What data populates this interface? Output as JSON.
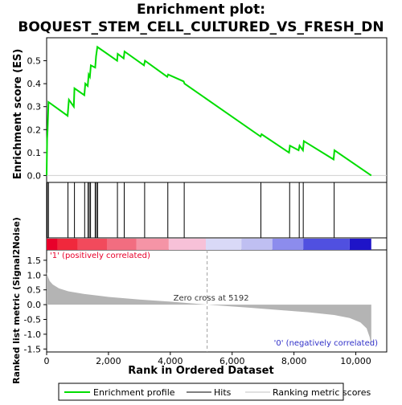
{
  "chart_data": {
    "type": "line",
    "title_lines": [
      "Enrichment plot:",
      "BOQUEST_STEM_CELL_CULTURED_VS_FRESH_DN"
    ],
    "xlabel": "Rank in Ordered Dataset",
    "es_panel": {
      "ylabel": "Enrichment score (ES)",
      "xlim": [
        0,
        11000
      ],
      "ylim": [
        -0.03,
        0.6
      ],
      "yticks": [
        0.0,
        0.1,
        0.2,
        0.3,
        0.4,
        0.5
      ],
      "ytick_labels": [
        "0.0",
        "0.1",
        "0.2",
        "0.3",
        "0.4",
        "0.5"
      ],
      "series_name": "Enrichment profile",
      "points": [
        [
          0,
          0
        ],
        [
          15,
          0.16
        ],
        [
          30,
          0.2
        ],
        [
          60,
          0.32
        ],
        [
          680,
          0.26
        ],
        [
          720,
          0.33
        ],
        [
          880,
          0.3
        ],
        [
          900,
          0.38
        ],
        [
          1220,
          0.35
        ],
        [
          1250,
          0.4
        ],
        [
          1330,
          0.39
        ],
        [
          1360,
          0.44
        ],
        [
          1400,
          0.43
        ],
        [
          1430,
          0.48
        ],
        [
          1570,
          0.47
        ],
        [
          1600,
          0.52
        ],
        [
          1640,
          0.56
        ],
        [
          2280,
          0.5
        ],
        [
          2300,
          0.53
        ],
        [
          2490,
          0.51
        ],
        [
          2520,
          0.54
        ],
        [
          3150,
          0.48
        ],
        [
          3180,
          0.5
        ],
        [
          3900,
          0.43
        ],
        [
          3930,
          0.44
        ],
        [
          4430,
          0.41
        ],
        [
          4460,
          0.4
        ],
        [
          6920,
          0.17
        ],
        [
          6950,
          0.18
        ],
        [
          7840,
          0.1
        ],
        [
          7870,
          0.13
        ],
        [
          8150,
          0.11
        ],
        [
          8180,
          0.13
        ],
        [
          8290,
          0.11
        ],
        [
          8320,
          0.15
        ],
        [
          9280,
          0.07
        ],
        [
          9310,
          0.11
        ],
        [
          10500,
          0
        ]
      ]
    },
    "hits": [
      20,
      60,
      690,
      900,
      1230,
      1340,
      1380,
      1420,
      1570,
      1610,
      1650,
      2290,
      2510,
      3170,
      3920,
      4450,
      6930,
      7860,
      8170,
      8300,
      9300
    ],
    "rank_metric_panel": {
      "ylabel": "Ranked list metric (Signal2Noise)",
      "xlim": [
        0,
        11000
      ],
      "ylim": [
        -1.6,
        1.85
      ],
      "yticks": [
        -1.5,
        -1.0,
        -0.5,
        0.0,
        0.5,
        1.0,
        1.5
      ],
      "ytick_labels": [
        "-1.5",
        "-1.0",
        "-0.5",
        "0.0",
        "0.5",
        "1.0",
        "1.5"
      ],
      "series_name": "Ranking metric scores",
      "profile": [
        [
          0,
          1.1
        ],
        [
          40,
          0.95
        ],
        [
          100,
          0.8
        ],
        [
          200,
          0.68
        ],
        [
          400,
          0.55
        ],
        [
          700,
          0.45
        ],
        [
          1200,
          0.36
        ],
        [
          2000,
          0.26
        ],
        [
          3000,
          0.17
        ],
        [
          4000,
          0.1
        ],
        [
          5192,
          0
        ],
        [
          6500,
          -0.1
        ],
        [
          7500,
          -0.18
        ],
        [
          8500,
          -0.26
        ],
        [
          9300,
          -0.35
        ],
        [
          9800,
          -0.45
        ],
        [
          10150,
          -0.6
        ],
        [
          10350,
          -0.8
        ],
        [
          10450,
          -1.1
        ],
        [
          10500,
          -1.4
        ]
      ],
      "zero_cross_label": "Zero cross at 5192",
      "zero_cross_rank": 5192,
      "positive_label": "'1' (positively correlated)",
      "negative_label": "'0' (negatively correlated)"
    },
    "xticks": [
      0,
      2000,
      4000,
      6000,
      8000,
      10000
    ],
    "xtick_labels": [
      "0",
      "2,000",
      "4,000",
      "6,000",
      "8,000",
      "10,000"
    ],
    "colorbar": [
      {
        "start": 0,
        "end": 350,
        "color": "#e8002a"
      },
      {
        "start": 350,
        "end": 1000,
        "color": "#f0283c"
      },
      {
        "start": 1000,
        "end": 1950,
        "color": "#f24a5c"
      },
      {
        "start": 1950,
        "end": 2900,
        "color": "#f26d80"
      },
      {
        "start": 2900,
        "end": 3950,
        "color": "#f594a6"
      },
      {
        "start": 3950,
        "end": 5150,
        "color": "#f7c1d8"
      },
      {
        "start": 5150,
        "end": 6300,
        "color": "#d9d9f7"
      },
      {
        "start": 6300,
        "end": 7300,
        "color": "#bfbff2"
      },
      {
        "start": 7300,
        "end": 8300,
        "color": "#8c8ced"
      },
      {
        "start": 8300,
        "end": 9800,
        "color": "#5050e0"
      },
      {
        "start": 9800,
        "end": 10500,
        "color": "#1e14c8"
      }
    ],
    "legend": {
      "placement": "bottom",
      "entries": [
        {
          "label": "Enrichment profile",
          "color": "#00dd00"
        },
        {
          "label": "Hits",
          "color": "#000000"
        },
        {
          "label": "Ranking metric scores",
          "color": "#c0c0c0"
        }
      ]
    },
    "colors": {
      "es_line": "#00dd00",
      "hit_line": "#000000",
      "metric_fill": "#b4b4b4",
      "positive_text": "#e8002a",
      "negative_text": "#3030c8",
      "zero_line": "#a0a0a0"
    }
  }
}
